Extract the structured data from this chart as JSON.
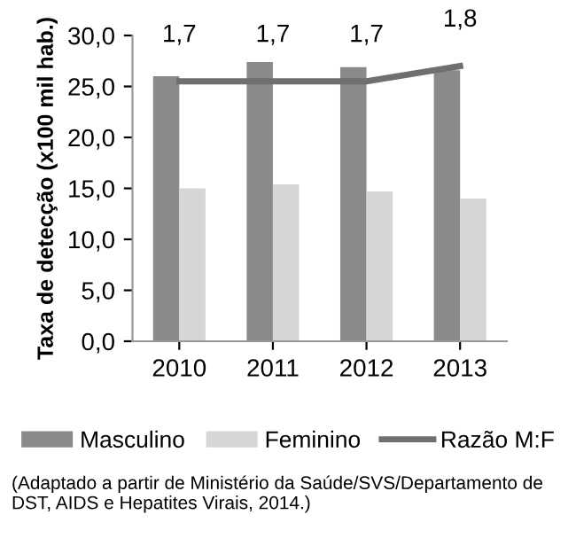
{
  "chart_data": {
    "type": "bar",
    "categories": [
      "2010",
      "2011",
      "2012",
      "2013"
    ],
    "ylabel": "Taxa de detecção (x100 mil hab.)",
    "ylim": [
      0,
      30
    ],
    "yticks": [
      {
        "value": 0,
        "label": "0,0"
      },
      {
        "value": 5,
        "label": "5,0"
      },
      {
        "value": 10,
        "label": "10,0"
      },
      {
        "value": 15,
        "label": "15,0"
      },
      {
        "value": 20,
        "label": "20,0"
      },
      {
        "value": 25,
        "label": "25,0"
      },
      {
        "value": 30,
        "label": "30,0"
      }
    ],
    "y2lim": [
      0,
      2
    ],
    "tick_labels": "xy",
    "series": [
      {
        "name": "Masculino",
        "color": "#8a8a8a",
        "values": [
          26.0,
          27.4,
          26.9,
          26.6
        ]
      },
      {
        "name": "Feminino",
        "color": "#d6d6d6",
        "values": [
          15.0,
          15.4,
          14.7,
          14.0
        ]
      },
      {
        "name": "Razão M:F",
        "type": "line",
        "axis": "y2",
        "color": "#6f6f6f",
        "values": [
          1.7,
          1.7,
          1.7,
          1.8
        ],
        "value_labels": [
          "1,7",
          "1,7",
          "1,7",
          "1,8"
        ]
      }
    ],
    "legend": "bottom",
    "grid": false,
    "annotations": [
      "(Adaptado a partir de Ministério da Saúde/SVS/Departamento de DST, AIDS e Hepatites Virais, 2014.)"
    ]
  }
}
